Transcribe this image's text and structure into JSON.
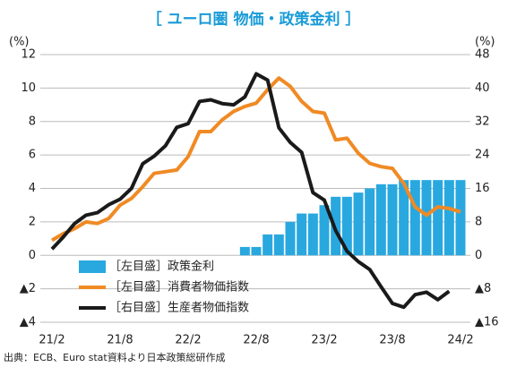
{
  "chart_data": {
    "type": "bar+line",
    "title": "［ ユーロ圏 物価・政策金利 ］",
    "y_label": "(%)",
    "y2_label": "(%)",
    "source": "出典：ECB、Euro stat資料より日本政策総研作成",
    "categories": [
      "21/2",
      null,
      null,
      null,
      null,
      null,
      "21/8",
      null,
      null,
      null,
      null,
      null,
      "22/2",
      null,
      null,
      null,
      null,
      null,
      "22/8",
      null,
      null,
      null,
      null,
      null,
      "23/2",
      null,
      null,
      null,
      null,
      null,
      "23/8",
      null,
      null,
      null,
      null,
      null,
      "24/2"
    ],
    "ylim": [
      -4,
      12
    ],
    "yticks": [
      {
        "value": -4,
        "label": "▲4"
      },
      {
        "value": -2,
        "label": "▲2"
      },
      0,
      2,
      4,
      6,
      8,
      10,
      12
    ],
    "y2lim": [
      -16,
      48
    ],
    "y2ticks": [
      {
        "value": -16,
        "label": "▲16"
      },
      {
        "value": -8,
        "label": "▲8"
      },
      0,
      8,
      16,
      24,
      32,
      40,
      48
    ],
    "grid": true,
    "series": [
      {
        "name": "［左目盛］政策金利",
        "type": "bar",
        "color": "#29a8df",
        "values": [
          0,
          0,
          0,
          0,
          0,
          0,
          0,
          0,
          0,
          0,
          0,
          0,
          0,
          0,
          0,
          0,
          0,
          0.5,
          0.5,
          1.25,
          1.25,
          2.0,
          2.5,
          2.5,
          3.0,
          3.5,
          3.5,
          3.75,
          4.0,
          4.25,
          4.25,
          4.5,
          4.5,
          4.5,
          4.5,
          4.5,
          4.5
        ]
      },
      {
        "name": "［左目盛］消費者物価指数",
        "type": "line",
        "color": "#f08a24",
        "values": [
          0.9,
          1.3,
          1.6,
          2.0,
          1.9,
          2.2,
          3.0,
          3.4,
          4.1,
          4.9,
          5.0,
          5.1,
          5.9,
          7.4,
          7.4,
          8.1,
          8.6,
          8.9,
          9.1,
          9.9,
          10.6,
          10.1,
          9.2,
          8.6,
          8.5,
          6.9,
          7.0,
          6.1,
          5.5,
          5.3,
          5.2,
          4.3,
          2.9,
          2.4,
          2.9,
          2.8,
          2.6
        ]
      },
      {
        "name": "［右目盛］生産者物価指数",
        "type": "line",
        "color": "#1a1a1a",
        "axis": "y2",
        "values": [
          1.5,
          4.4,
          7.6,
          9.6,
          10.2,
          12.1,
          13.4,
          16.0,
          21.9,
          23.7,
          26.2,
          30.6,
          31.5,
          36.8,
          37.2,
          36.3,
          36.0,
          37.9,
          43.4,
          41.9,
          30.5,
          27.0,
          24.6,
          15.0,
          13.2,
          5.9,
          1.0,
          -1.5,
          -3.4,
          -7.5,
          -11.5,
          -12.4,
          -9.4,
          -8.8,
          -10.6,
          -8.6,
          null
        ]
      }
    ]
  }
}
